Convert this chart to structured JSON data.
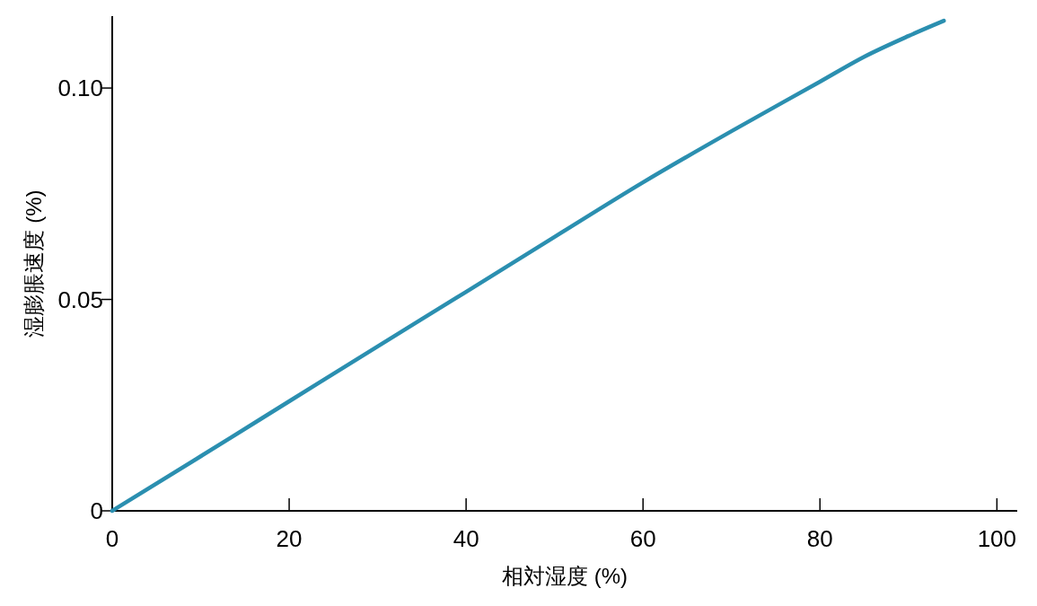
{
  "chart_data": {
    "type": "line",
    "xlabel": "相対湿度 (%)",
    "ylabel": "湿膨脹速度 (%)",
    "x": [
      0,
      10,
      20,
      30,
      40,
      50,
      60,
      70,
      80,
      85,
      90,
      94
    ],
    "series": [
      {
        "color": "#2b8fb0",
        "values": [
          0,
          0.0129,
          0.0259,
          0.0389,
          0.0518,
          0.0648,
          0.0777,
          0.0898,
          0.1015,
          0.1074,
          0.1123,
          0.1159
        ]
      }
    ],
    "xlim": [
      0,
      102.3
    ],
    "ylim": [
      0,
      0.117
    ],
    "xticks": [
      0,
      20,
      40,
      60,
      80,
      100
    ],
    "yticks": [
      0,
      {
        "value": 0.05,
        "label": "0.05"
      },
      {
        "value": 0.1,
        "label": "0.10"
      }
    ],
    "grid": false
  }
}
